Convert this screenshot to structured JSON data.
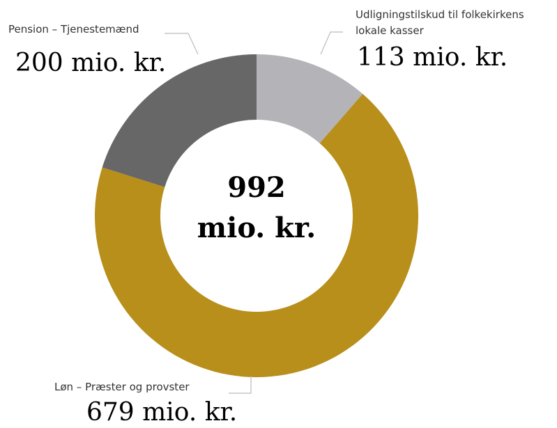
{
  "chart_data": {
    "type": "donut",
    "categories": [
      "Udligningstilskud til folkekirkens lokale kasser",
      "Løn – Præster og provster",
      "Pension – Tjenestemænd"
    ],
    "values": [
      113,
      679,
      200
    ],
    "value_labels": [
      "113 mio. kr.",
      "679 mio. kr.",
      "200 mio. kr."
    ],
    "colors": [
      "#b4b4b8",
      "#b78f1a",
      "#666766"
    ],
    "center_label": [
      "992",
      "mio. kr."
    ]
  }
}
